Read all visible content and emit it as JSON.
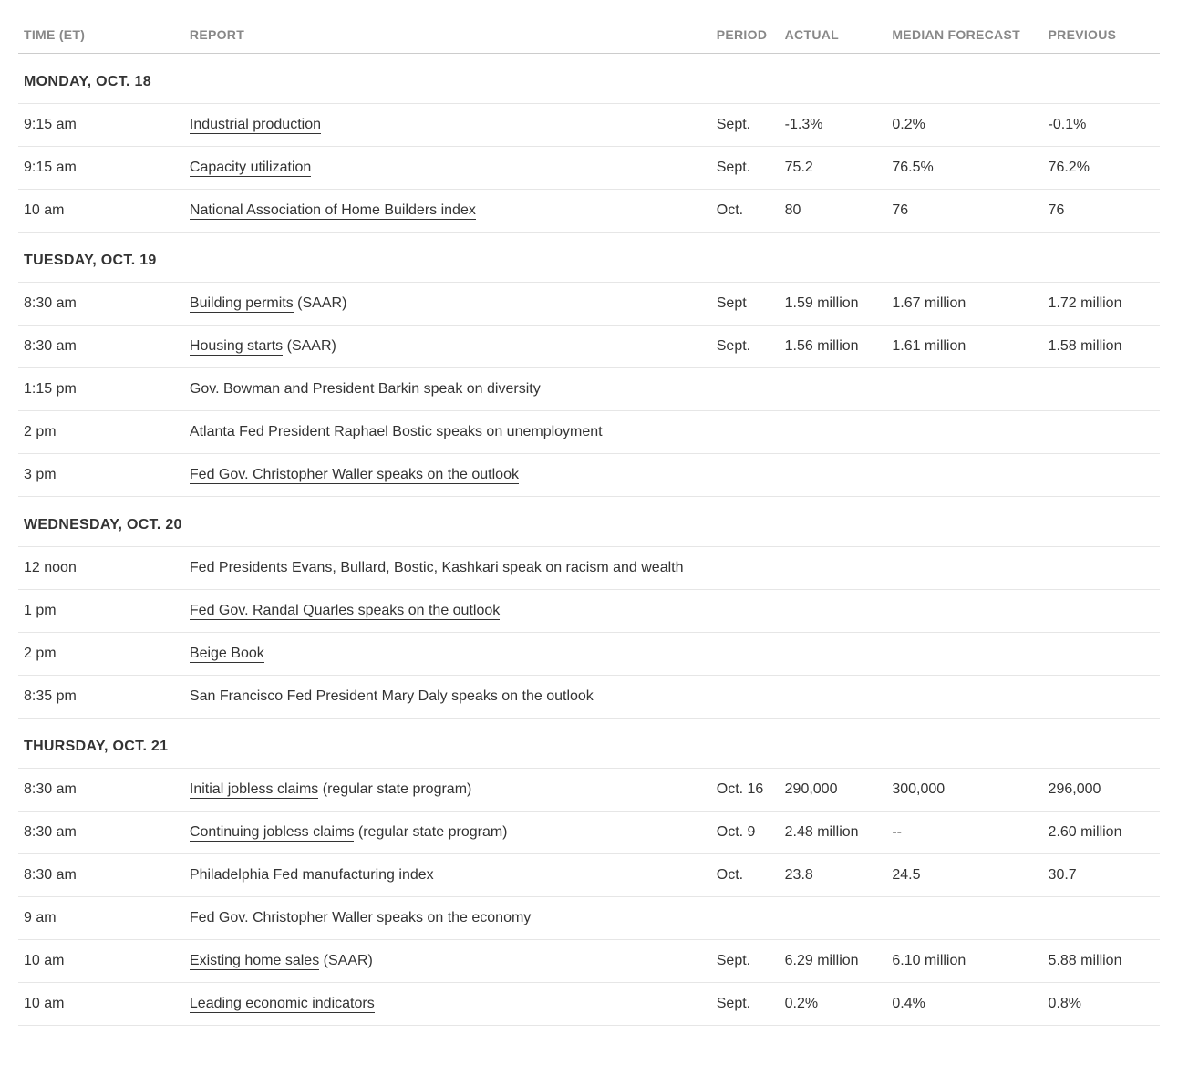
{
  "columns": {
    "time": "TIME (ET)",
    "report": "REPORT",
    "period": "PERIOD",
    "actual": "ACTUAL",
    "forecast": "MEDIAN FORECAST",
    "previous": "PREVIOUS"
  },
  "days": [
    {
      "label": "MONDAY, OCT. 18",
      "rows": [
        {
          "time": "9:15 am",
          "report_link": "Industrial production",
          "report_suffix": "",
          "period": "Sept.",
          "actual": "-1.3%",
          "forecast": "0.2%",
          "previous": "-0.1%"
        },
        {
          "time": "9:15 am",
          "report_link": "Capacity utilization",
          "report_suffix": "",
          "period": "Sept.",
          "actual": "75.2",
          "forecast": "76.5%",
          "previous": "76.2%"
        },
        {
          "time": "10 am",
          "report_link": "National Association of Home Builders index",
          "report_suffix": "",
          "period": "Oct.",
          "actual": "80",
          "forecast": "76",
          "previous": "76"
        }
      ]
    },
    {
      "label": "TUESDAY, OCT. 19",
      "rows": [
        {
          "time": "8:30 am",
          "report_link": "Building permits",
          "report_suffix": " (SAAR)",
          "period": "Sept",
          "actual": "1.59 million",
          "forecast": "1.67 million",
          "previous": "1.72 million"
        },
        {
          "time": "8:30 am",
          "report_link": "Housing starts",
          "report_suffix": " (SAAR)",
          "period": "Sept.",
          "actual": "1.56 million",
          "forecast": "1.61 million",
          "previous": "1.58 million"
        },
        {
          "time": "1:15 pm",
          "report_link": "",
          "report_suffix": "Gov. Bowman and President Barkin speak on diversity",
          "period": "",
          "actual": "",
          "forecast": "",
          "previous": ""
        },
        {
          "time": "2 pm",
          "report_link": "",
          "report_suffix": "Atlanta Fed President Raphael Bostic speaks on unemployment",
          "period": "",
          "actual": "",
          "forecast": "",
          "previous": ""
        },
        {
          "time": "3 pm",
          "report_link": "Fed Gov. Christopher Waller speaks on the outlook",
          "report_suffix": "",
          "period": "",
          "actual": "",
          "forecast": "",
          "previous": ""
        }
      ]
    },
    {
      "label": "WEDNESDAY, OCT. 20",
      "rows": [
        {
          "time": "12 noon",
          "report_link": "",
          "report_suffix": "Fed Presidents Evans, Bullard, Bostic, Kashkari speak on racism and wealth",
          "period": "",
          "actual": "",
          "forecast": "",
          "previous": ""
        },
        {
          "time": "1 pm",
          "report_link": "Fed Gov. Randal Quarles speaks on the outlook",
          "report_suffix": "",
          "period": "",
          "actual": "",
          "forecast": "",
          "previous": ""
        },
        {
          "time": "2 pm",
          "report_link": "Beige Book",
          "report_suffix": "",
          "period": "",
          "actual": "",
          "forecast": "",
          "previous": ""
        },
        {
          "time": "8:35 pm",
          "report_link": "",
          "report_suffix": "San Francisco Fed President Mary Daly speaks on the outlook",
          "period": "",
          "actual": "",
          "forecast": "",
          "previous": ""
        }
      ]
    },
    {
      "label": "THURSDAY, OCT. 21",
      "rows": [
        {
          "time": "8:30 am",
          "report_link": "Initial jobless claims",
          "report_suffix": " (regular state program)",
          "period": "Oct. 16",
          "actual": "290,000",
          "forecast": "300,000",
          "previous": "296,000"
        },
        {
          "time": "8:30 am",
          "report_link": "Continuing jobless claims",
          "report_suffix": " (regular state program)",
          "period": "Oct. 9",
          "actual": "2.48 million",
          "forecast": "--",
          "previous": "2.60 million"
        },
        {
          "time": "8:30 am",
          "report_link": "Philadelphia Fed manufacturing index",
          "report_suffix": "",
          "period": "Oct.",
          "actual": "23.8",
          "forecast": "24.5",
          "previous": "30.7"
        },
        {
          "time": "9 am",
          "report_link": "",
          "report_suffix": "Fed Gov. Christopher Waller speaks on the economy",
          "period": "",
          "actual": "",
          "forecast": "",
          "previous": ""
        },
        {
          "time": "10 am",
          "report_link": "Existing home sales",
          "report_suffix": " (SAAR)",
          "period": "Sept.",
          "actual": "6.29 million",
          "forecast": "6.10 million",
          "previous": "5.88 million"
        },
        {
          "time": "10 am",
          "report_link": "Leading economic indicators",
          "report_suffix": "",
          "period": "Sept.",
          "actual": "0.2%",
          "forecast": "0.4%",
          "previous": "0.8%"
        }
      ]
    }
  ]
}
